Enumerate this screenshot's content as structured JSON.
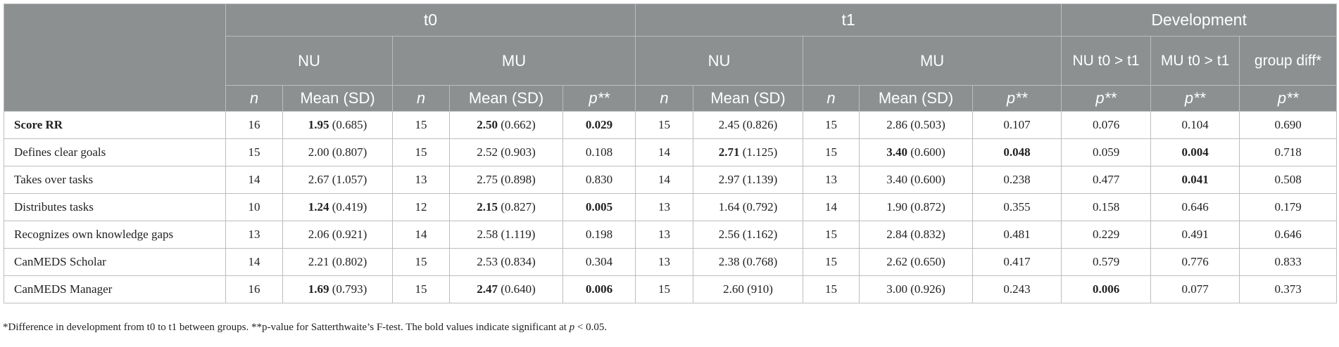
{
  "header": {
    "groups": {
      "t0": "t0",
      "t1": "t1",
      "development": "Development"
    },
    "subgroups": {
      "t0_nu": "NU",
      "t0_mu": "MU",
      "t1_nu": "NU",
      "t1_mu": "MU",
      "dev_nu": "NU t0 > t1",
      "dev_mu": "MU t0 > t1",
      "dev_group": "group diff*"
    },
    "columns": {
      "n": "n",
      "mean_sd": "Mean (SD)",
      "p": "p**"
    }
  },
  "rows": [
    {
      "label": "Score RR",
      "t0_nu_n": "16",
      "t0_nu_mean": "1.95",
      "t0_nu_sd": " (0.685)",
      "t0_mu_n": "15",
      "t0_mu_mean": "2.50",
      "t0_mu_sd": " (0.662)",
      "t0_p": "0.029",
      "t1_nu_n": "15",
      "t1_nu_mean": "2.45",
      "t1_nu_sd": " (0.826)",
      "t1_mu_n": "15",
      "t1_mu_mean": "2.86",
      "t1_mu_sd": " (0.503)",
      "t1_p": "0.107",
      "dev_nu_p": "0.076",
      "dev_mu_p": "0.104",
      "dev_group_p": "0.690"
    },
    {
      "label": "Defines clear goals",
      "t0_nu_n": "15",
      "t0_nu_mean": "2.00",
      "t0_nu_sd": " (0.807)",
      "t0_mu_n": "15",
      "t0_mu_mean": "2.52",
      "t0_mu_sd": " (0.903)",
      "t0_p": "0.108",
      "t1_nu_n": "14",
      "t1_nu_mean": "2.71",
      "t1_nu_sd": " (1.125)",
      "t1_mu_n": "15",
      "t1_mu_mean": "3.40",
      "t1_mu_sd": " (0.600)",
      "t1_p": "0.048",
      "dev_nu_p": "0.059",
      "dev_mu_p": "0.004",
      "dev_group_p": "0.718"
    },
    {
      "label": "Takes over tasks",
      "t0_nu_n": "14",
      "t0_nu_mean": "2.67",
      "t0_nu_sd": " (1.057)",
      "t0_mu_n": "13",
      "t0_mu_mean": "2.75",
      "t0_mu_sd": " (0.898)",
      "t0_p": "0.830",
      "t1_nu_n": "14",
      "t1_nu_mean": "2.97",
      "t1_nu_sd": " (1.139)",
      "t1_mu_n": "13",
      "t1_mu_mean": "3.40",
      "t1_mu_sd": " (0.600)",
      "t1_p": "0.238",
      "dev_nu_p": "0.477",
      "dev_mu_p": "0.041",
      "dev_group_p": "0.508"
    },
    {
      "label": "Distributes tasks",
      "t0_nu_n": "10",
      "t0_nu_mean": "1.24",
      "t0_nu_sd": " (0.419)",
      "t0_mu_n": "12",
      "t0_mu_mean": "2.15",
      "t0_mu_sd": " (0.827)",
      "t0_p": "0.005",
      "t1_nu_n": "13",
      "t1_nu_mean": "1.64",
      "t1_nu_sd": " (0.792)",
      "t1_mu_n": "14",
      "t1_mu_mean": "1.90",
      "t1_mu_sd": " (0.872)",
      "t1_p": "0.355",
      "dev_nu_p": "0.158",
      "dev_mu_p": "0.646",
      "dev_group_p": "0.179"
    },
    {
      "label": "Recognizes own knowledge gaps",
      "t0_nu_n": "13",
      "t0_nu_mean": "2.06",
      "t0_nu_sd": " (0.921)",
      "t0_mu_n": "14",
      "t0_mu_mean": "2.58",
      "t0_mu_sd": " (1.119)",
      "t0_p": "0.198",
      "t1_nu_n": "13",
      "t1_nu_mean": "2.56",
      "t1_nu_sd": " (1.162)",
      "t1_mu_n": "15",
      "t1_mu_mean": "2.84",
      "t1_mu_sd": " (0.832)",
      "t1_p": "0.481",
      "dev_nu_p": "0.229",
      "dev_mu_p": "0.491",
      "dev_group_p": "0.646"
    },
    {
      "label": "CanMEDS Scholar",
      "t0_nu_n": "14",
      "t0_nu_mean": "2.21",
      "t0_nu_sd": " (0.802)",
      "t0_mu_n": "15",
      "t0_mu_mean": "2.53",
      "t0_mu_sd": " (0.834)",
      "t0_p": "0.304",
      "t1_nu_n": "13",
      "t1_nu_mean": "2.38",
      "t1_nu_sd": " (0.768)",
      "t1_mu_n": "15",
      "t1_mu_mean": "2.62",
      "t1_mu_sd": " (0.650)",
      "t1_p": "0.417",
      "dev_nu_p": "0.579",
      "dev_mu_p": "0.776",
      "dev_group_p": "0.833"
    },
    {
      "label": "CanMEDS Manager",
      "t0_nu_n": "16",
      "t0_nu_mean": "1.69",
      "t0_nu_sd": " (0.793)",
      "t0_mu_n": "15",
      "t0_mu_mean": "2.47",
      "t0_mu_sd": " (0.640)",
      "t0_p": "0.006",
      "t1_nu_n": "15",
      "t1_nu_mean": "2.60",
      "t1_nu_sd": " (910)",
      "t1_mu_n": "15",
      "t1_mu_mean": "3.00",
      "t1_mu_sd": " (0.926)",
      "t1_p": "0.243",
      "dev_nu_p": "0.006",
      "dev_mu_p": "0.077",
      "dev_group_p": "0.373"
    }
  ],
  "footnote": {
    "part1": "*Difference in development from t0 to t1 between groups. **p-value for Satterthwaite’s F-test. The bold values indicate significant at ",
    "p_symbol": "p",
    "part2": " < 0.05."
  }
}
